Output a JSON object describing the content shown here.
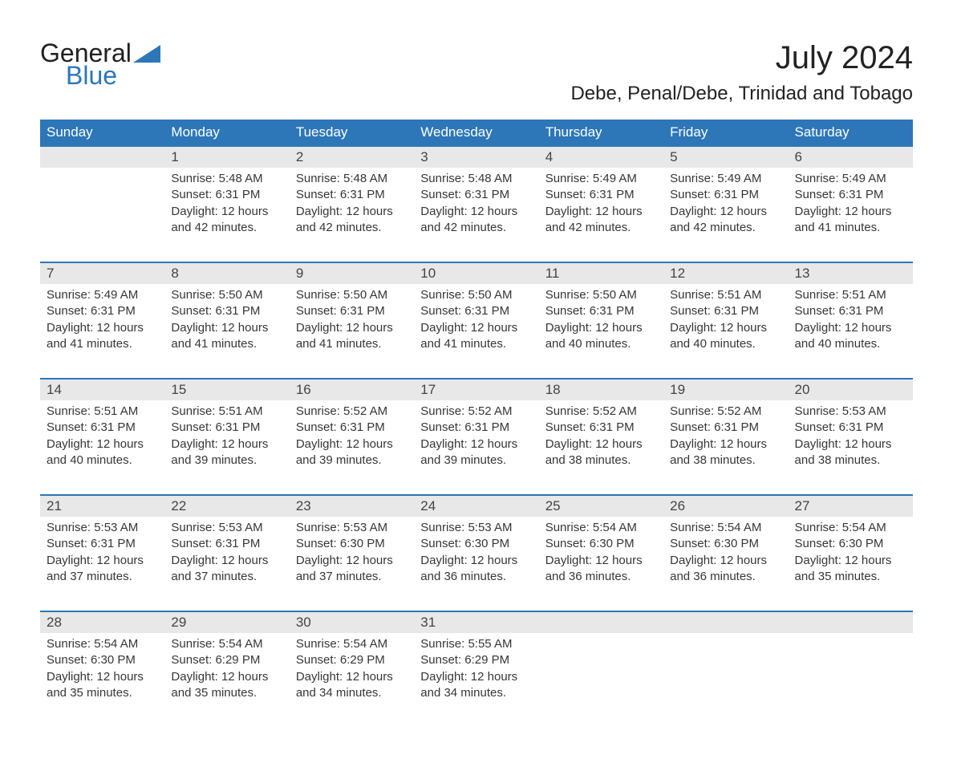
{
  "colors": {
    "header_blue": "#2d76b8",
    "daynum_gray": "#e8e8e8",
    "text_dark": "#363636",
    "logo_black": "#202020",
    "logo_blue": "#2d76b8",
    "background": "#ffffff"
  },
  "logo": {
    "line1": "General",
    "line2": "Blue"
  },
  "title": "July 2024",
  "location": "Debe, Penal/Debe, Trinidad and Tobago",
  "weekdays": [
    "Sunday",
    "Monday",
    "Tuesday",
    "Wednesday",
    "Thursday",
    "Friday",
    "Saturday"
  ],
  "weeks": [
    [
      null,
      {
        "num": "1",
        "sunrise": "Sunrise: 5:48 AM",
        "sunset": "Sunset: 6:31 PM",
        "daylight1": "Daylight: 12 hours",
        "daylight2": "and 42 minutes."
      },
      {
        "num": "2",
        "sunrise": "Sunrise: 5:48 AM",
        "sunset": "Sunset: 6:31 PM",
        "daylight1": "Daylight: 12 hours",
        "daylight2": "and 42 minutes."
      },
      {
        "num": "3",
        "sunrise": "Sunrise: 5:48 AM",
        "sunset": "Sunset: 6:31 PM",
        "daylight1": "Daylight: 12 hours",
        "daylight2": "and 42 minutes."
      },
      {
        "num": "4",
        "sunrise": "Sunrise: 5:49 AM",
        "sunset": "Sunset: 6:31 PM",
        "daylight1": "Daylight: 12 hours",
        "daylight2": "and 42 minutes."
      },
      {
        "num": "5",
        "sunrise": "Sunrise: 5:49 AM",
        "sunset": "Sunset: 6:31 PM",
        "daylight1": "Daylight: 12 hours",
        "daylight2": "and 42 minutes."
      },
      {
        "num": "6",
        "sunrise": "Sunrise: 5:49 AM",
        "sunset": "Sunset: 6:31 PM",
        "daylight1": "Daylight: 12 hours",
        "daylight2": "and 41 minutes."
      }
    ],
    [
      {
        "num": "7",
        "sunrise": "Sunrise: 5:49 AM",
        "sunset": "Sunset: 6:31 PM",
        "daylight1": "Daylight: 12 hours",
        "daylight2": "and 41 minutes."
      },
      {
        "num": "8",
        "sunrise": "Sunrise: 5:50 AM",
        "sunset": "Sunset: 6:31 PM",
        "daylight1": "Daylight: 12 hours",
        "daylight2": "and 41 minutes."
      },
      {
        "num": "9",
        "sunrise": "Sunrise: 5:50 AM",
        "sunset": "Sunset: 6:31 PM",
        "daylight1": "Daylight: 12 hours",
        "daylight2": "and 41 minutes."
      },
      {
        "num": "10",
        "sunrise": "Sunrise: 5:50 AM",
        "sunset": "Sunset: 6:31 PM",
        "daylight1": "Daylight: 12 hours",
        "daylight2": "and 41 minutes."
      },
      {
        "num": "11",
        "sunrise": "Sunrise: 5:50 AM",
        "sunset": "Sunset: 6:31 PM",
        "daylight1": "Daylight: 12 hours",
        "daylight2": "and 40 minutes."
      },
      {
        "num": "12",
        "sunrise": "Sunrise: 5:51 AM",
        "sunset": "Sunset: 6:31 PM",
        "daylight1": "Daylight: 12 hours",
        "daylight2": "and 40 minutes."
      },
      {
        "num": "13",
        "sunrise": "Sunrise: 5:51 AM",
        "sunset": "Sunset: 6:31 PM",
        "daylight1": "Daylight: 12 hours",
        "daylight2": "and 40 minutes."
      }
    ],
    [
      {
        "num": "14",
        "sunrise": "Sunrise: 5:51 AM",
        "sunset": "Sunset: 6:31 PM",
        "daylight1": "Daylight: 12 hours",
        "daylight2": "and 40 minutes."
      },
      {
        "num": "15",
        "sunrise": "Sunrise: 5:51 AM",
        "sunset": "Sunset: 6:31 PM",
        "daylight1": "Daylight: 12 hours",
        "daylight2": "and 39 minutes."
      },
      {
        "num": "16",
        "sunrise": "Sunrise: 5:52 AM",
        "sunset": "Sunset: 6:31 PM",
        "daylight1": "Daylight: 12 hours",
        "daylight2": "and 39 minutes."
      },
      {
        "num": "17",
        "sunrise": "Sunrise: 5:52 AM",
        "sunset": "Sunset: 6:31 PM",
        "daylight1": "Daylight: 12 hours",
        "daylight2": "and 39 minutes."
      },
      {
        "num": "18",
        "sunrise": "Sunrise: 5:52 AM",
        "sunset": "Sunset: 6:31 PM",
        "daylight1": "Daylight: 12 hours",
        "daylight2": "and 38 minutes."
      },
      {
        "num": "19",
        "sunrise": "Sunrise: 5:52 AM",
        "sunset": "Sunset: 6:31 PM",
        "daylight1": "Daylight: 12 hours",
        "daylight2": "and 38 minutes."
      },
      {
        "num": "20",
        "sunrise": "Sunrise: 5:53 AM",
        "sunset": "Sunset: 6:31 PM",
        "daylight1": "Daylight: 12 hours",
        "daylight2": "and 38 minutes."
      }
    ],
    [
      {
        "num": "21",
        "sunrise": "Sunrise: 5:53 AM",
        "sunset": "Sunset: 6:31 PM",
        "daylight1": "Daylight: 12 hours",
        "daylight2": "and 37 minutes."
      },
      {
        "num": "22",
        "sunrise": "Sunrise: 5:53 AM",
        "sunset": "Sunset: 6:31 PM",
        "daylight1": "Daylight: 12 hours",
        "daylight2": "and 37 minutes."
      },
      {
        "num": "23",
        "sunrise": "Sunrise: 5:53 AM",
        "sunset": "Sunset: 6:30 PM",
        "daylight1": "Daylight: 12 hours",
        "daylight2": "and 37 minutes."
      },
      {
        "num": "24",
        "sunrise": "Sunrise: 5:53 AM",
        "sunset": "Sunset: 6:30 PM",
        "daylight1": "Daylight: 12 hours",
        "daylight2": "and 36 minutes."
      },
      {
        "num": "25",
        "sunrise": "Sunrise: 5:54 AM",
        "sunset": "Sunset: 6:30 PM",
        "daylight1": "Daylight: 12 hours",
        "daylight2": "and 36 minutes."
      },
      {
        "num": "26",
        "sunrise": "Sunrise: 5:54 AM",
        "sunset": "Sunset: 6:30 PM",
        "daylight1": "Daylight: 12 hours",
        "daylight2": "and 36 minutes."
      },
      {
        "num": "27",
        "sunrise": "Sunrise: 5:54 AM",
        "sunset": "Sunset: 6:30 PM",
        "daylight1": "Daylight: 12 hours",
        "daylight2": "and 35 minutes."
      }
    ],
    [
      {
        "num": "28",
        "sunrise": "Sunrise: 5:54 AM",
        "sunset": "Sunset: 6:30 PM",
        "daylight1": "Daylight: 12 hours",
        "daylight2": "and 35 minutes."
      },
      {
        "num": "29",
        "sunrise": "Sunrise: 5:54 AM",
        "sunset": "Sunset: 6:29 PM",
        "daylight1": "Daylight: 12 hours",
        "daylight2": "and 35 minutes."
      },
      {
        "num": "30",
        "sunrise": "Sunrise: 5:54 AM",
        "sunset": "Sunset: 6:29 PM",
        "daylight1": "Daylight: 12 hours",
        "daylight2": "and 34 minutes."
      },
      {
        "num": "31",
        "sunrise": "Sunrise: 5:55 AM",
        "sunset": "Sunset: 6:29 PM",
        "daylight1": "Daylight: 12 hours",
        "daylight2": "and 34 minutes."
      },
      null,
      null,
      null
    ]
  ]
}
